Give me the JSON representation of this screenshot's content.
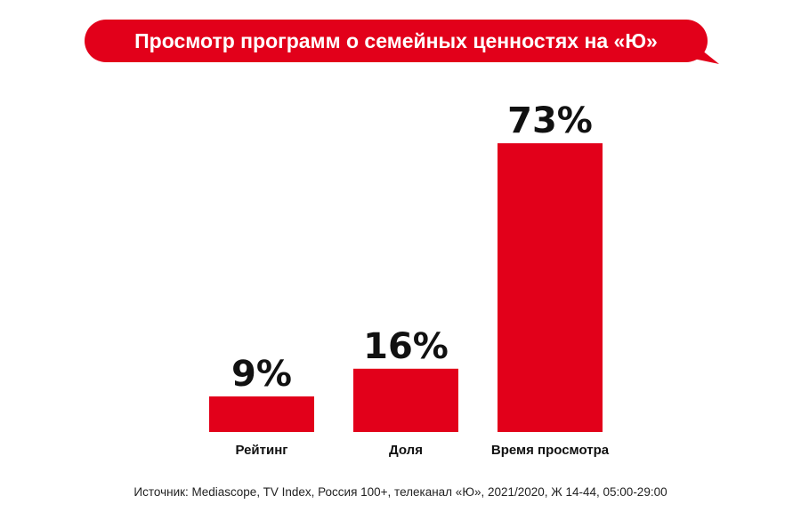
{
  "title": "Просмотр программ о семейных ценностях на «Ю»",
  "colors": {
    "accent": "#e2001a",
    "text": "#111111"
  },
  "chart_data": {
    "type": "bar",
    "title": "Просмотр программ о семейных ценностях на «Ю»",
    "categories": [
      "Рейтинг",
      "Доля",
      "Время просмотра"
    ],
    "values": [
      9,
      16,
      73
    ],
    "data_labels": [
      "9%",
      "16%",
      "73%"
    ],
    "unit": "%",
    "ylim": [
      0,
      100
    ],
    "grid": false,
    "legend": "none"
  },
  "source": "Источник: Mediascope, TV Index, Россия 100+, телеканал «Ю», 2021/2020, Ж 14-44, 05:00-29:00"
}
